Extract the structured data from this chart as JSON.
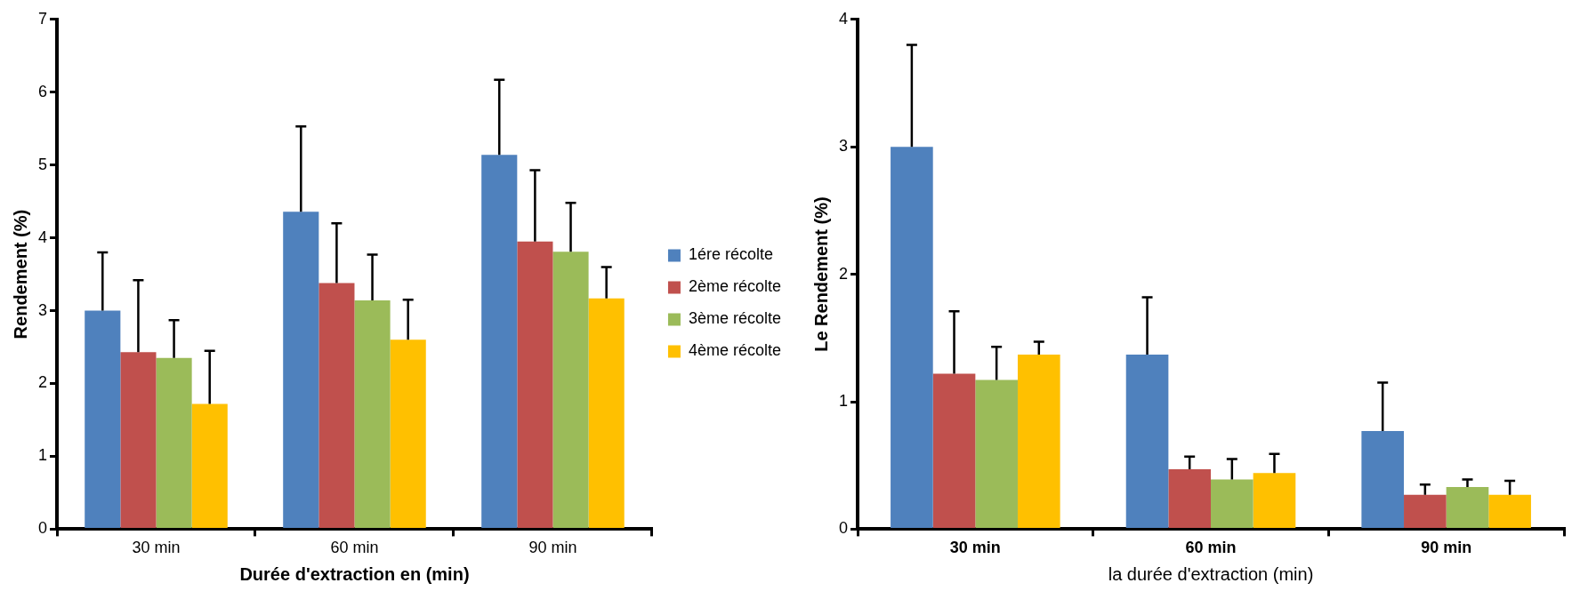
{
  "chart_data": [
    {
      "type": "bar",
      "xlabel": "Durée d'extraction en (min)",
      "ylabel": "Rendement (%)",
      "categories": [
        "30 min",
        "60 min",
        "90 min"
      ],
      "ylim": [
        0,
        7
      ],
      "yticks": [
        0,
        1,
        2,
        3,
        4,
        5,
        6,
        7
      ],
      "grid": false,
      "legend": "right",
      "series": [
        {
          "name": "1ére récolte",
          "color": "#4f81bd",
          "values": [
            3.0,
            4.36,
            5.14
          ],
          "errors": [
            [
              3.0,
              3.8
            ],
            [
              4.36,
              5.53
            ],
            [
              5.14,
              6.17
            ]
          ]
        },
        {
          "name": "2ème récolte",
          "color": "#c0504d",
          "values": [
            2.43,
            3.38,
            3.95
          ],
          "errors": [
            [
              2.43,
              3.42
            ],
            [
              3.38,
              4.2
            ],
            [
              3.95,
              4.93
            ]
          ]
        },
        {
          "name": "3ème récolte",
          "color": "#9bbb59",
          "values": [
            2.35,
            3.14,
            3.81
          ],
          "errors": [
            [
              2.35,
              2.87
            ],
            [
              3.14,
              3.77
            ],
            [
              3.81,
              4.48
            ]
          ]
        },
        {
          "name": "4ème récolte",
          "color": "#ffc000",
          "values": [
            1.72,
            2.6,
            3.17
          ],
          "errors": [
            [
              1.72,
              2.45
            ],
            [
              2.6,
              3.15
            ],
            [
              3.17,
              3.6
            ]
          ]
        }
      ]
    },
    {
      "type": "bar",
      "xlabel": "la durée d'extraction (min)",
      "ylabel": "Le Rendement (%)",
      "categories": [
        "30 min",
        "60 min",
        "90 min"
      ],
      "ylim": [
        0,
        4
      ],
      "yticks": [
        0,
        1,
        2,
        3,
        4
      ],
      "grid": false,
      "legend": false,
      "series": [
        {
          "color": "#4f81bd",
          "values": [
            3.0,
            1.37,
            0.77
          ],
          "errors": [
            [
              3.0,
              3.8
            ],
            [
              1.37,
              1.82
            ],
            [
              0.77,
              1.15
            ]
          ]
        },
        {
          "color": "#c0504d",
          "values": [
            1.22,
            0.47,
            0.27
          ],
          "errors": [
            [
              1.22,
              1.71
            ],
            [
              0.47,
              0.57
            ],
            [
              0.27,
              0.35
            ]
          ]
        },
        {
          "color": "#9bbb59",
          "values": [
            1.17,
            0.39,
            0.33
          ],
          "errors": [
            [
              1.17,
              1.43
            ],
            [
              0.39,
              0.55
            ],
            [
              0.33,
              0.39
            ]
          ]
        },
        {
          "color": "#ffc000",
          "values": [
            1.37,
            0.44,
            0.27
          ],
          "errors": [
            [
              1.37,
              1.47
            ],
            [
              0.44,
              0.59
            ],
            [
              0.27,
              0.38
            ]
          ]
        }
      ]
    }
  ]
}
